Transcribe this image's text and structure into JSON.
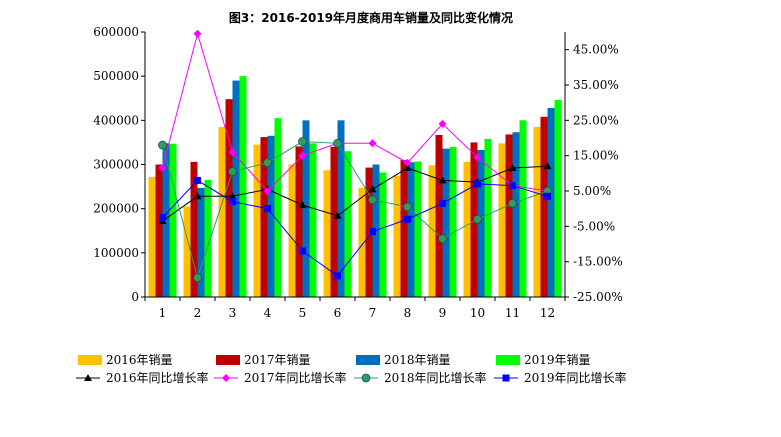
{
  "chart_data": {
    "type": "bar",
    "title": "图3：2016-2019年月度商用车销量及同比变化情况",
    "xlabel": "",
    "ylabel": "",
    "categories": [
      "1",
      "2",
      "3",
      "4",
      "5",
      "6",
      "7",
      "8",
      "9",
      "10",
      "11",
      "12"
    ],
    "ylim": [
      0,
      600000
    ],
    "yticks": [
      "0",
      "100000",
      "200000",
      "300000",
      "400000",
      "500000",
      "600000"
    ],
    "y2lim": [
      -25,
      50
    ],
    "y2ticks": [
      "-25.00%",
      "-15.00%",
      "-5.00%",
      "5.00%",
      "15.00%",
      "25.00%",
      "35.00%",
      "45.00%"
    ],
    "grid": false,
    "legend_position": "bottom",
    "bar_series": [
      {
        "name": "2016年销量",
        "color": "#FFC000",
        "values": [
          272000,
          205000,
          385000,
          345000,
          300000,
          287000,
          247000,
          275000,
          298000,
          306000,
          348000,
          385000
        ]
      },
      {
        "name": "2017年销量",
        "color": "#C00000",
        "values": [
          300000,
          306000,
          448000,
          362000,
          341000,
          340000,
          293000,
          310000,
          367000,
          350000,
          368000,
          408000
        ]
      },
      {
        "name": "2018年销量",
        "color": "#0070C0",
        "values": [
          348000,
          247000,
          490000,
          365000,
          400000,
          400000,
          300000,
          305000,
          336000,
          333000,
          373000,
          428000
        ]
      },
      {
        "name": "2019年销量",
        "color": "#00FF00",
        "values": [
          347000,
          265000,
          500000,
          405000,
          348000,
          330000,
          282000,
          307000,
          340000,
          358000,
          400000,
          446000
        ]
      }
    ],
    "line_series": [
      {
        "name": "2016年同比增长率",
        "color": "#000000",
        "marker": "triangle",
        "values": [
          -3.5,
          3.5,
          3.5,
          5.5,
          1.0,
          -2.0,
          5.5,
          11.5,
          8.0,
          7.5,
          11.5,
          12.0
        ]
      },
      {
        "name": "2017年同比增长率",
        "color": "#FF00FF",
        "marker": "diamond",
        "values": [
          11.5,
          49.5,
          16.0,
          5.0,
          15.0,
          18.5,
          18.5,
          13.0,
          24.0,
          14.5,
          6.5,
          5.0
        ]
      },
      {
        "name": "2018年同比增长率",
        "color": "#339966",
        "marker": "circle",
        "values": [
          18.0,
          -19.5,
          10.5,
          13.0,
          19.0,
          18.5,
          2.5,
          0.5,
          -8.5,
          -3.0,
          1.5,
          5.0
        ]
      },
      {
        "name": "2019年同比增长率",
        "color": "#0000FF",
        "marker": "square",
        "values": [
          -2.5,
          8.0,
          2.0,
          0.0,
          -12.0,
          -19.0,
          -6.5,
          -3.0,
          1.5,
          7.0,
          6.5,
          3.5
        ]
      }
    ]
  }
}
